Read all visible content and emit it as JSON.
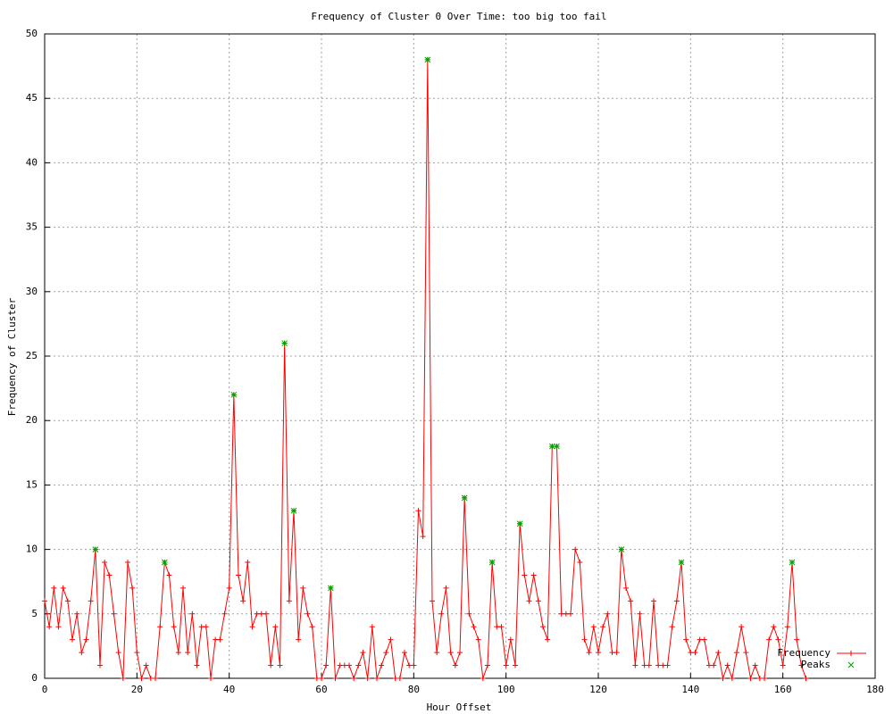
{
  "chart_data": {
    "type": "line",
    "title": "Frequency of Cluster 0 Over Time: too big too fail",
    "x_label": "Hour Offset",
    "y_label": "Frequency of Cluster",
    "xlim": [
      0,
      180
    ],
    "xticks": [
      0,
      20,
      40,
      60,
      80,
      100,
      120,
      140,
      160,
      180
    ],
    "ylim": [
      0,
      50
    ],
    "yticks": [
      0,
      5,
      10,
      15,
      20,
      25,
      30,
      35,
      40,
      45,
      50
    ],
    "grid": true,
    "legend": "bottom-right",
    "series": [
      {
        "name": "Frequency",
        "color": "#ff0000",
        "style": "line",
        "x": [
          0,
          1,
          2,
          3,
          4,
          5,
          6,
          7,
          8,
          9,
          10,
          11,
          12,
          13,
          14,
          15,
          16,
          17,
          18,
          19,
          20,
          21,
          22,
          23,
          24,
          25,
          26,
          27,
          28,
          29,
          30,
          31,
          32,
          33,
          34,
          35,
          36,
          37,
          38,
          39,
          40,
          41,
          42,
          43,
          44,
          45,
          46,
          47,
          48,
          49,
          50,
          51,
          52,
          53,
          54,
          55,
          56,
          57,
          58,
          59,
          60,
          61,
          62,
          63,
          64,
          65,
          66,
          67,
          68,
          69,
          70,
          71,
          72,
          73,
          74,
          75,
          76,
          77,
          78,
          79,
          80,
          81,
          82,
          83,
          84,
          85,
          86,
          87,
          88,
          89,
          90,
          91,
          92,
          93,
          94,
          95,
          96,
          97,
          98,
          99,
          100,
          101,
          102,
          103,
          104,
          105,
          106,
          107,
          108,
          109,
          110,
          111,
          112,
          113,
          114,
          115,
          116,
          117,
          118,
          119,
          120,
          121,
          122,
          123,
          124,
          125,
          126,
          127,
          128,
          129,
          130,
          131,
          132,
          133,
          134,
          135,
          136,
          137,
          138,
          139,
          140,
          141,
          142,
          143,
          144,
          145,
          146,
          147,
          148,
          149,
          150,
          151,
          152,
          153,
          154,
          155,
          156,
          157,
          158,
          159,
          160,
          161,
          162,
          163,
          164,
          165
        ],
        "values": [
          6,
          4,
          7,
          4,
          7,
          6,
          3,
          5,
          2,
          3,
          6,
          10,
          1,
          9,
          8,
          5,
          2,
          0,
          9,
          7,
          2,
          0,
          1,
          0,
          0,
          4,
          9,
          8,
          4,
          2,
          7,
          2,
          5,
          1,
          4,
          4,
          0,
          3,
          3,
          5,
          7,
          22,
          8,
          6,
          9,
          4,
          5,
          5,
          5,
          1,
          4,
          1,
          26,
          6,
          13,
          3,
          7,
          5,
          4,
          0,
          0,
          1,
          7,
          0,
          1,
          1,
          1,
          0,
          1,
          2,
          0,
          4,
          0,
          1,
          2,
          3,
          0,
          0,
          2,
          1,
          1,
          13,
          11,
          48,
          6,
          2,
          5,
          7,
          2,
          1,
          2,
          14,
          5,
          4,
          3,
          0,
          1,
          9,
          4,
          4,
          1,
          3,
          1,
          12,
          8,
          6,
          8,
          6,
          4,
          3,
          18,
          18,
          5,
          5,
          5,
          10,
          9,
          3,
          2,
          4,
          2,
          4,
          5,
          2,
          2,
          10,
          7,
          6,
          1,
          5,
          1,
          1,
          6,
          1,
          1,
          1,
          4,
          6,
          9,
          3,
          2,
          2,
          3,
          3,
          1,
          1,
          2,
          0,
          1,
          0,
          2,
          4,
          2,
          0,
          1,
          0,
          0,
          3,
          4,
          3,
          1,
          4,
          9,
          3,
          1,
          0
        ]
      },
      {
        "name": "Peaks",
        "color": "#00a000",
        "style": "points",
        "x": [
          11,
          26,
          41,
          52,
          54,
          62,
          83,
          91,
          97,
          103,
          110,
          111,
          125,
          138,
          162
        ],
        "values": [
          10,
          9,
          22,
          26,
          13,
          7,
          48,
          14,
          9,
          12,
          18,
          18,
          10,
          9,
          9
        ]
      }
    ]
  }
}
